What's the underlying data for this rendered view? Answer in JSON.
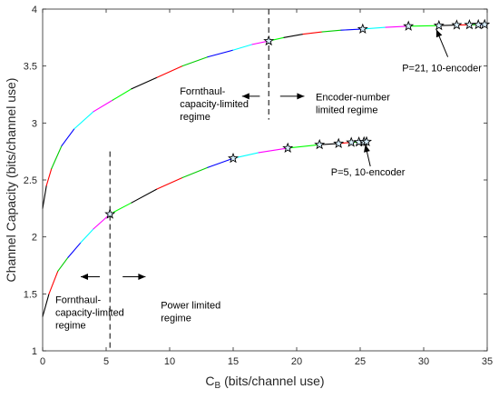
{
  "chart_data": {
    "type": "line",
    "xlabel_main": "C",
    "xlabel_sub": "B",
    "xlabel_rest": " (bits/channel use)",
    "ylabel": "Channel Capacity (bits/channel use)",
    "xlim": [
      0,
      35
    ],
    "ylim": [
      1,
      4
    ],
    "xticks": [
      0,
      5,
      10,
      15,
      20,
      25,
      30,
      35
    ],
    "yticks": [
      1,
      1.5,
      2,
      2.5,
      3,
      3.5,
      4
    ],
    "grid": false,
    "segment_colors": [
      "#000000",
      "#ff0000",
      "#00cc00",
      "#0000ff",
      "#00ffff",
      "#ff00ff",
      "#00ff00"
    ],
    "series": [
      {
        "points": [
          [
            0.0,
            2.25
          ],
          [
            0.3,
            2.45
          ],
          [
            0.7,
            2.6
          ],
          [
            1.5,
            2.8
          ],
          [
            2.5,
            2.95
          ],
          [
            4,
            3.1
          ],
          [
            5.5,
            3.2
          ],
          [
            7,
            3.3
          ],
          [
            9,
            3.4
          ],
          [
            11,
            3.5
          ],
          [
            13,
            3.58
          ],
          [
            15,
            3.64
          ],
          [
            16.5,
            3.69
          ],
          [
            17.8,
            3.72
          ],
          [
            19,
            3.75
          ],
          [
            20.5,
            3.78
          ],
          [
            22,
            3.8
          ],
          [
            23.5,
            3.815
          ],
          [
            25.2,
            3.825
          ],
          [
            27,
            3.84
          ],
          [
            28.8,
            3.85
          ],
          [
            31.2,
            3.855
          ],
          [
            32.6,
            3.86
          ],
          [
            33.6,
            3.862
          ],
          [
            34.3,
            3.863
          ],
          [
            34.6,
            3.864
          ],
          [
            34.8,
            3.865
          ]
        ],
        "markers": [
          [
            17.8,
            3.72
          ],
          [
            25.2,
            3.825
          ],
          [
            28.8,
            3.85
          ],
          [
            31.2,
            3.855
          ],
          [
            32.6,
            3.86
          ],
          [
            33.6,
            3.862
          ],
          [
            34.3,
            3.863
          ],
          [
            34.8,
            3.865
          ]
        ]
      },
      {
        "points": [
          [
            0.0,
            1.3
          ],
          [
            0.5,
            1.5
          ],
          [
            1.2,
            1.7
          ],
          [
            2,
            1.82
          ],
          [
            3,
            1.95
          ],
          [
            4,
            2.07
          ],
          [
            5.3,
            2.2
          ],
          [
            7,
            2.3
          ],
          [
            9,
            2.42
          ],
          [
            11,
            2.52
          ],
          [
            13,
            2.61
          ],
          [
            15,
            2.69
          ],
          [
            17,
            2.74
          ],
          [
            19.3,
            2.78
          ],
          [
            21.8,
            2.81
          ],
          [
            23.3,
            2.82
          ],
          [
            24.3,
            2.83
          ],
          [
            24.9,
            2.833
          ],
          [
            25.3,
            2.835
          ],
          [
            25.5,
            2.836
          ]
        ],
        "markers": [
          [
            5.3,
            2.2
          ],
          [
            15,
            2.69
          ],
          [
            19.3,
            2.78
          ],
          [
            21.8,
            2.81
          ],
          [
            23.3,
            2.82
          ],
          [
            24.3,
            2.83
          ],
          [
            24.9,
            2.833
          ],
          [
            25.3,
            2.835
          ],
          [
            25.5,
            2.836
          ]
        ]
      }
    ],
    "vlines": [
      {
        "x": 17.8,
        "y0": 3.03,
        "y1": 4.0
      },
      {
        "x": 5.3,
        "y0": 1.0,
        "y1": 2.75
      }
    ],
    "annotations": [
      {
        "id": "p21",
        "text_lines": [
          "P=21, 10-encoder"
        ],
        "x": 28.3,
        "y": 3.455
      },
      {
        "id": "p5",
        "text_lines": [
          "P=5, 10-encoder"
        ],
        "x": 22.7,
        "y": 2.54
      },
      {
        "id": "fronthaul-top",
        "text_lines": [
          "Fornthaul-",
          "capacity-limited",
          "regime"
        ],
        "x": 10.8,
        "y": 3.25
      },
      {
        "id": "encoder-limited",
        "text_lines": [
          "Encoder-number",
          "limited regime"
        ],
        "x": 21.5,
        "y": 3.2
      },
      {
        "id": "fronthaul-bottom",
        "text_lines": [
          "Fornthaul-",
          "capacity-limited",
          "regime"
        ],
        "x": 1.0,
        "y": 1.42
      },
      {
        "id": "power-limited",
        "text_lines": [
          "Power limited",
          "regime"
        ],
        "x": 9.3,
        "y": 1.37
      }
    ],
    "arrows": [
      {
        "from": [
          31.9,
          3.58
        ],
        "to": [
          31.0,
          3.82
        ]
      },
      {
        "from": [
          25.8,
          2.62
        ],
        "to": [
          25.4,
          2.81
        ]
      },
      {
        "from": [
          17.1,
          3.235
        ],
        "to": [
          15.7,
          3.235
        ]
      },
      {
        "from": [
          18.7,
          3.235
        ],
        "to": [
          20.6,
          3.235
        ]
      },
      {
        "from": [
          4.5,
          1.65
        ],
        "to": [
          3.0,
          1.65
        ]
      },
      {
        "from": [
          6.3,
          1.65
        ],
        "to": [
          8.1,
          1.65
        ]
      }
    ]
  }
}
